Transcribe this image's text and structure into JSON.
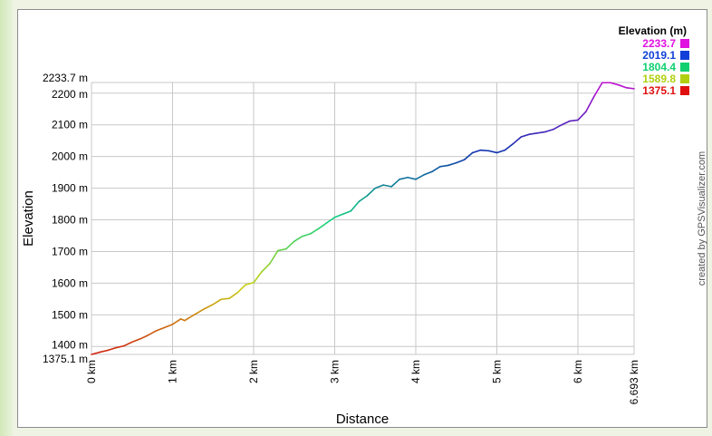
{
  "chart_data": {
    "type": "line",
    "xlabel": "Distance",
    "ylabel": "Elevation",
    "xlim": [
      0,
      6.693
    ],
    "ylim": [
      1375.1,
      2233.7
    ],
    "x_ticks": [
      {
        "value": 0,
        "label": "0 km"
      },
      {
        "value": 1,
        "label": "1 km"
      },
      {
        "value": 2,
        "label": "2 km"
      },
      {
        "value": 3,
        "label": "3 km"
      },
      {
        "value": 4,
        "label": "4 km"
      },
      {
        "value": 5,
        "label": "5 km"
      },
      {
        "value": 6,
        "label": "6 km"
      },
      {
        "value": 6.693,
        "label": "6.693 km"
      }
    ],
    "y_ticks": [
      {
        "value": 1375.1,
        "label": "1375.1 m"
      },
      {
        "value": 1400,
        "label": "1400 m"
      },
      {
        "value": 1500,
        "label": "1500 m"
      },
      {
        "value": 1600,
        "label": "1600 m"
      },
      {
        "value": 1700,
        "label": "1700 m"
      },
      {
        "value": 1800,
        "label": "1800 m"
      },
      {
        "value": 1900,
        "label": "1900 m"
      },
      {
        "value": 2000,
        "label": "2000 m"
      },
      {
        "value": 2100,
        "label": "2100 m"
      },
      {
        "value": 2200,
        "label": "2200 m"
      },
      {
        "value": 2233.7,
        "label": "2233.7 m"
      }
    ],
    "legend": {
      "title": "Elevation (m)",
      "placement": "top-right",
      "entries": [
        {
          "label": "2233.7",
          "color": "#e010e0"
        },
        {
          "label": "2019.1",
          "color": "#1040d8"
        },
        {
          "label": "1804.4",
          "color": "#10d070"
        },
        {
          "label": "1589.8",
          "color": "#b0d010"
        },
        {
          "label": "1375.1",
          "color": "#e01010"
        }
      ]
    },
    "color_scale": [
      {
        "value": 1375.1,
        "color": "#d02010"
      },
      {
        "value": 1589.8,
        "color": "#c8d010"
      },
      {
        "value": 1804.4,
        "color": "#10d080"
      },
      {
        "value": 2019.1,
        "color": "#1030b0"
      },
      {
        "value": 2233.7,
        "color": "#c010d0"
      }
    ],
    "grid": true,
    "x": [
      0,
      0.1,
      0.2,
      0.3,
      0.4,
      0.5,
      0.6,
      0.7,
      0.8,
      0.9,
      1.0,
      1.1,
      1.15,
      1.2,
      1.3,
      1.4,
      1.5,
      1.6,
      1.7,
      1.8,
      1.9,
      2.0,
      2.1,
      2.2,
      2.3,
      2.4,
      2.5,
      2.6,
      2.7,
      2.8,
      2.9,
      3.0,
      3.1,
      3.2,
      3.3,
      3.4,
      3.5,
      3.6,
      3.7,
      3.8,
      3.9,
      4.0,
      4.1,
      4.2,
      4.3,
      4.4,
      4.5,
      4.6,
      4.7,
      4.8,
      4.9,
      5.0,
      5.1,
      5.2,
      5.3,
      5.4,
      5.5,
      5.6,
      5.7,
      5.8,
      5.9,
      6.0,
      6.1,
      6.2,
      6.3,
      6.4,
      6.5,
      6.6,
      6.693
    ],
    "values": [
      1375,
      1382,
      1388,
      1396,
      1402,
      1414,
      1424,
      1436,
      1450,
      1460,
      1470,
      1487,
      1482,
      1490,
      1505,
      1520,
      1533,
      1549,
      1552,
      1570,
      1595,
      1602,
      1636,
      1662,
      1703,
      1708,
      1732,
      1748,
      1756,
      1772,
      1790,
      1808,
      1818,
      1828,
      1858,
      1876,
      1900,
      1910,
      1905,
      1928,
      1934,
      1928,
      1942,
      1952,
      1968,
      1972,
      1980,
      1990,
      2012,
      2020,
      2018,
      2012,
      2020,
      2040,
      2062,
      2070,
      2074,
      2078,
      2086,
      2100,
      2112,
      2115,
      2142,
      2190,
      2233,
      2233,
      2226,
      2217,
      2214
    ]
  },
  "credit": "created by GPSVisualizer.com"
}
